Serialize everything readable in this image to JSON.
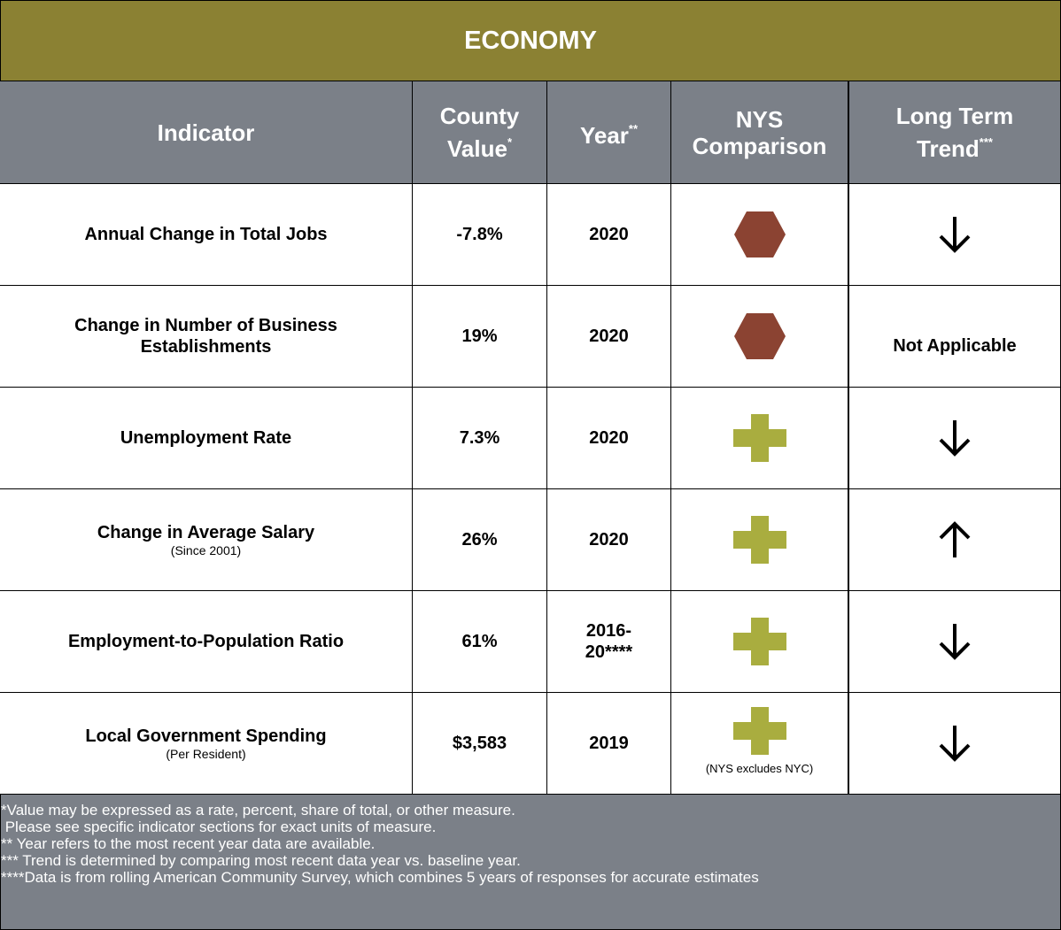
{
  "title": "ECONOMY",
  "header": [
    {
      "text": "Indicator"
    },
    {
      "text": "County Value",
      "sup": "*"
    },
    {
      "text": "Year",
      "sup": "**"
    },
    {
      "text": "NYS Comparison"
    },
    {
      "text": "Long Term Trend",
      "sup": "***"
    }
  ],
  "rows": [
    {
      "indicator": "Annual Change in Total Jobs",
      "value": "-7.8%",
      "year": "2020"
    },
    {
      "indicator": "Change in Number of Business Establishments",
      "value": "19%",
      "year": "2020",
      "trend": "Not Applicable"
    },
    {
      "indicator": "Unemployment Rate",
      "value": "7.3%",
      "year": "2020"
    },
    {
      "indicator": "Change in Average Salary",
      "note": "(Since 2001)",
      "value": "26%",
      "year": "2020"
    },
    {
      "indicator": "Employment-to-Population Ratio",
      "value": "61%",
      "year": "2016-20****"
    },
    {
      "indicator": "Local Government Spending",
      "note": "(Per Resident)",
      "value": "$3,583",
      "year": "2019",
      "comparison_note": "(NYS excludes NYC)"
    }
  ],
  "footnotes": [
    "*Value may be expressed as a rate, percent, share of total, or other measure.",
    " Please see specific indicator sections for exact units of measure.",
    "** Year refers to the most recent year data are available.",
    "*** Trend is determined by comparing most recent data year vs. baseline year.",
    "****Data is from rolling American Community Survey, which combines 5 years of responses for accurate estimates"
  ]
}
